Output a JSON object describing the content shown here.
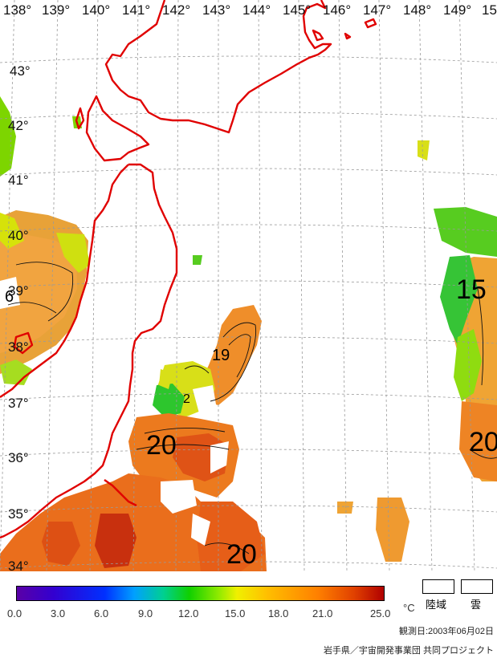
{
  "map": {
    "lon_labels": [
      "138°",
      "139°",
      "140°",
      "141°",
      "142°",
      "143°",
      "144°",
      "145°",
      "146°",
      "147°",
      "148°",
      "149°",
      "15"
    ],
    "lat_labels": [
      "43°",
      "42°",
      "41°",
      "40°",
      "39°",
      "38°",
      "37°",
      "36°",
      "35°",
      "34°"
    ],
    "contour_labels": [
      "19",
      "15",
      "20",
      "20",
      "20",
      "6",
      "2"
    ]
  },
  "legend": {
    "ticks": [
      "0.0",
      "3.0",
      "6.0",
      "9.0",
      "12.0",
      "15.0",
      "18.0",
      "21.0",
      "25.0"
    ],
    "unit": "°C",
    "land_label": "陸域",
    "cloud_label": "雲"
  },
  "footer": {
    "date": "観測日:2003年06月02日",
    "credit": "岩手県／宇宙開発事業団  共同プロジェクト"
  },
  "colors": {
    "coast": "#e00000",
    "grid": "#9a9a9a"
  }
}
